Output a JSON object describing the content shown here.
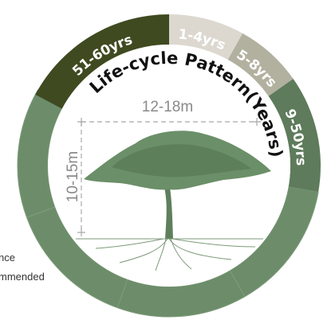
{
  "ring": {
    "title": "Life-cycle Pattern(Years)",
    "segments": [
      {
        "label": "51-60yrs"
      },
      {
        "label": "1-4yrs"
      },
      {
        "label": "5-8yrs"
      },
      {
        "label": "9-50yrs"
      }
    ]
  },
  "dimensions": {
    "width": "12-18m",
    "height": "10-15m"
  },
  "side_text": [
    "nce",
    "mmended"
  ]
}
